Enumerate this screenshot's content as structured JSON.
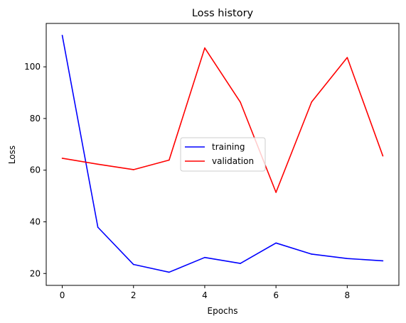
{
  "chart_data": {
    "type": "line",
    "title": "Loss history",
    "xlabel": "Epochs",
    "ylabel": "Loss",
    "x": [
      0,
      1,
      2,
      3,
      4,
      5,
      6,
      7,
      8,
      9
    ],
    "xlim": [
      -0.45,
      9.45
    ],
    "ylim": [
      15.4,
      116.8
    ],
    "xticks": [
      0,
      2,
      4,
      6,
      8
    ],
    "yticks": [
      20,
      40,
      60,
      80,
      100
    ],
    "grid": false,
    "legend_position": "center",
    "series": [
      {
        "name": "training",
        "color": "#0000ff",
        "values": [
          112.2,
          37.9,
          23.5,
          20.5,
          26.2,
          23.9,
          31.8,
          27.5,
          25.8,
          24.9
        ]
      },
      {
        "name": "validation",
        "color": "#ff0000",
        "values": [
          64.6,
          62.3,
          60.2,
          63.9,
          107.3,
          86.3,
          51.4,
          86.4,
          103.6,
          65.5
        ]
      }
    ]
  }
}
